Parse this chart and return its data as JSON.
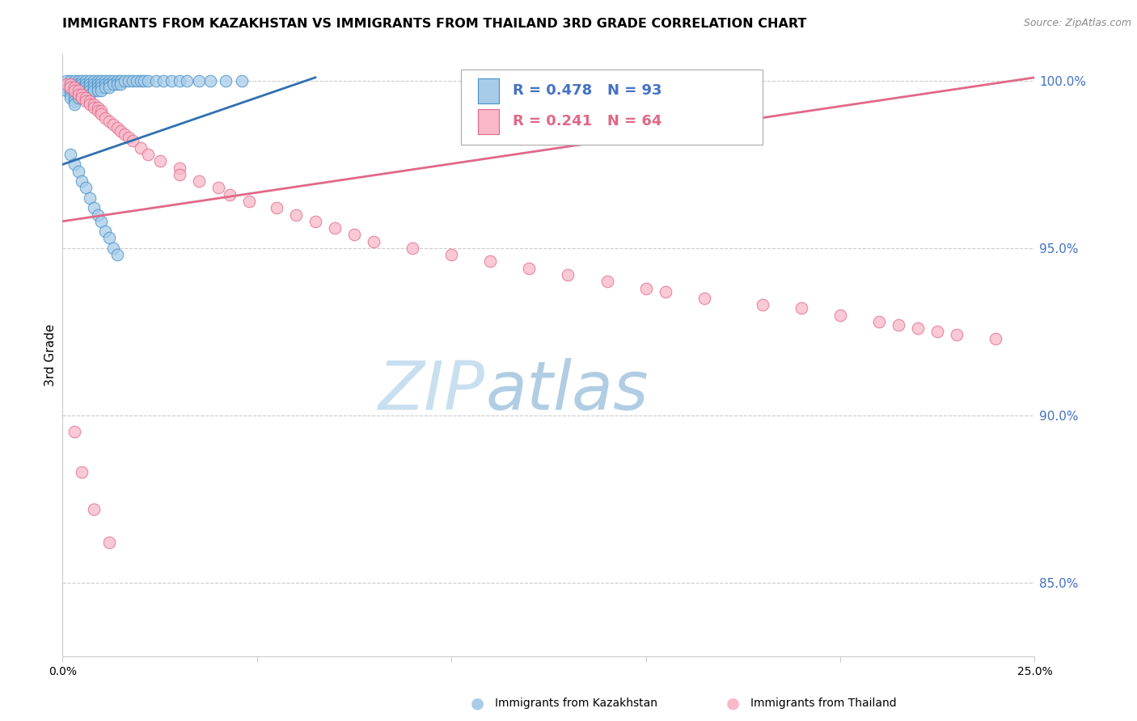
{
  "title": "IMMIGRANTS FROM KAZAKHSTAN VS IMMIGRANTS FROM THAILAND 3RD GRADE CORRELATION CHART",
  "source": "Source: ZipAtlas.com",
  "ylabel": "3rd Grade",
  "xmin": 0.0,
  "xmax": 0.25,
  "ymin": 0.828,
  "ymax": 1.008,
  "yticks": [
    0.85,
    0.9,
    0.95,
    1.0
  ],
  "ytick_labels": [
    "85.0%",
    "90.0%",
    "95.0%",
    "100.0%"
  ],
  "legend_blue_r": 0.478,
  "legend_blue_n": 93,
  "legend_pink_r": 0.241,
  "legend_pink_n": 64,
  "blue_face_color": "#a8cce8",
  "blue_edge_color": "#4490c8",
  "pink_face_color": "#f8b8c8",
  "pink_edge_color": "#e06888",
  "blue_line_color": "#3070b0",
  "pink_line_color": "#e06888",
  "blue_line_x0": 0.0,
  "blue_line_x1": 0.065,
  "blue_line_y0": 0.975,
  "blue_line_y1": 1.001,
  "pink_line_x0": 0.0,
  "pink_line_x1": 0.25,
  "pink_line_y0": 0.958,
  "pink_line_y1": 1.001,
  "watermark_zip_color": "#c8dff0",
  "watermark_atlas_color": "#90b8d8",
  "blue_x": [
    0.001,
    0.001,
    0.001,
    0.001,
    0.002,
    0.002,
    0.002,
    0.002,
    0.002,
    0.002,
    0.003,
    0.003,
    0.003,
    0.003,
    0.003,
    0.003,
    0.003,
    0.003,
    0.004,
    0.004,
    0.004,
    0.004,
    0.004,
    0.004,
    0.005,
    0.005,
    0.005,
    0.005,
    0.005,
    0.005,
    0.006,
    0.006,
    0.006,
    0.006,
    0.006,
    0.007,
    0.007,
    0.007,
    0.007,
    0.007,
    0.008,
    0.008,
    0.008,
    0.008,
    0.009,
    0.009,
    0.009,
    0.009,
    0.01,
    0.01,
    0.01,
    0.01,
    0.011,
    0.011,
    0.011,
    0.012,
    0.012,
    0.012,
    0.013,
    0.013,
    0.014,
    0.014,
    0.015,
    0.015,
    0.016,
    0.017,
    0.018,
    0.019,
    0.02,
    0.021,
    0.022,
    0.024,
    0.026,
    0.028,
    0.03,
    0.032,
    0.035,
    0.038,
    0.042,
    0.046,
    0.002,
    0.003,
    0.004,
    0.005,
    0.006,
    0.007,
    0.008,
    0.009,
    0.01,
    0.011,
    0.012,
    0.013,
    0.014
  ],
  "blue_y": [
    0.998,
    0.999,
    1.0,
    0.997,
    0.999,
    1.0,
    0.998,
    0.997,
    0.996,
    0.995,
    1.0,
    0.999,
    0.998,
    0.997,
    0.996,
    0.995,
    0.994,
    0.993,
    1.0,
    0.999,
    0.998,
    0.997,
    0.996,
    0.995,
    1.0,
    0.999,
    0.998,
    0.997,
    0.996,
    0.995,
    1.0,
    0.999,
    0.998,
    0.997,
    0.996,
    1.0,
    0.999,
    0.998,
    0.997,
    0.996,
    1.0,
    0.999,
    0.998,
    0.997,
    1.0,
    0.999,
    0.998,
    0.997,
    1.0,
    0.999,
    0.998,
    0.997,
    1.0,
    0.999,
    0.998,
    1.0,
    0.999,
    0.998,
    1.0,
    0.999,
    1.0,
    0.999,
    1.0,
    0.999,
    1.0,
    1.0,
    1.0,
    1.0,
    1.0,
    1.0,
    1.0,
    1.0,
    1.0,
    1.0,
    1.0,
    1.0,
    1.0,
    1.0,
    1.0,
    1.0,
    0.978,
    0.975,
    0.973,
    0.97,
    0.968,
    0.965,
    0.962,
    0.96,
    0.958,
    0.955,
    0.953,
    0.95,
    0.948
  ],
  "pink_x": [
    0.001,
    0.002,
    0.002,
    0.003,
    0.003,
    0.004,
    0.004,
    0.005,
    0.005,
    0.006,
    0.006,
    0.007,
    0.007,
    0.008,
    0.008,
    0.009,
    0.009,
    0.01,
    0.01,
    0.011,
    0.012,
    0.013,
    0.014,
    0.015,
    0.016,
    0.017,
    0.018,
    0.02,
    0.022,
    0.025,
    0.03,
    0.03,
    0.035,
    0.04,
    0.043,
    0.048,
    0.055,
    0.06,
    0.065,
    0.07,
    0.075,
    0.08,
    0.09,
    0.1,
    0.11,
    0.12,
    0.13,
    0.14,
    0.15,
    0.155,
    0.165,
    0.18,
    0.19,
    0.2,
    0.21,
    0.215,
    0.22,
    0.225,
    0.23,
    0.24,
    0.003,
    0.005,
    0.008,
    0.012
  ],
  "pink_y": [
    0.999,
    0.999,
    0.998,
    0.998,
    0.997,
    0.997,
    0.996,
    0.996,
    0.995,
    0.995,
    0.994,
    0.994,
    0.993,
    0.993,
    0.992,
    0.992,
    0.991,
    0.991,
    0.99,
    0.989,
    0.988,
    0.987,
    0.986,
    0.985,
    0.984,
    0.983,
    0.982,
    0.98,
    0.978,
    0.976,
    0.974,
    0.972,
    0.97,
    0.968,
    0.966,
    0.964,
    0.962,
    0.96,
    0.958,
    0.956,
    0.954,
    0.952,
    0.95,
    0.948,
    0.946,
    0.944,
    0.942,
    0.94,
    0.938,
    0.937,
    0.935,
    0.933,
    0.932,
    0.93,
    0.928,
    0.927,
    0.926,
    0.925,
    0.924,
    0.923,
    0.895,
    0.883,
    0.872,
    0.862
  ]
}
